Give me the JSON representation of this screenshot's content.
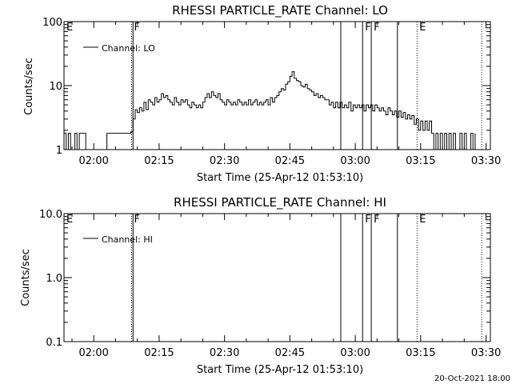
{
  "footer_timestamp": "20-Oct-2021 18:00",
  "chart_data": [
    {
      "type": "line",
      "title": "RHESSI PARTICLE_RATE Channel: LO",
      "xlabel": "Start Time (25-Apr-12 01:53:10)",
      "ylabel": "Counts/sec",
      "yscale": "log",
      "ylim": [
        1,
        100
      ],
      "xlim": [
        "01:53:10",
        "03:31:00"
      ],
      "x_ticks": [
        "02:00",
        "02:15",
        "02:30",
        "02:45",
        "03:00",
        "03:15",
        "03:30"
      ],
      "y_ticks": [
        "1",
        "10",
        "100"
      ],
      "legend": {
        "placement": "top-left",
        "entries": [
          "Channel: LO"
        ]
      },
      "grid": false,
      "series": [
        {
          "name": "Channel: LO",
          "points": [
            [
              "01:53:10",
              1.8
            ],
            [
              "01:53:40",
              1.0
            ],
            [
              "01:54:10",
              1.8
            ],
            [
              "01:54:40",
              1.0
            ],
            [
              "01:55:10",
              1.0
            ],
            [
              "01:55:40",
              1.8
            ],
            [
              "01:56:10",
              1.0
            ],
            [
              "01:56:40",
              1.8
            ],
            [
              "01:57:10",
              1.8
            ],
            [
              "01:57:40",
              1.8
            ],
            [
              "01:58:10",
              1.0
            ],
            [
              "01:58:40",
              1.0
            ],
            [
              "01:59:10",
              1.0
            ],
            [
              "02:00:10",
              1.0
            ],
            [
              "02:01:10",
              1.0
            ],
            [
              "02:02:10",
              1.0
            ],
            [
              "02:03:00",
              1.8
            ],
            [
              "02:04:30",
              1.8
            ],
            [
              "02:06:00",
              1.8
            ],
            [
              "02:07:30",
              1.8
            ],
            [
              "02:08:30",
              1.9
            ],
            [
              "02:09:00",
              3.0
            ],
            [
              "02:09:30",
              4.2
            ],
            [
              "02:10:00",
              3.8
            ],
            [
              "02:10:30",
              4.5
            ],
            [
              "02:11:00",
              4.0
            ],
            [
              "02:11:30",
              5.5
            ],
            [
              "02:12:00",
              4.2
            ],
            [
              "02:12:30",
              6.0
            ],
            [
              "02:13:00",
              5.5
            ],
            [
              "02:13:30",
              5.0
            ],
            [
              "02:14:00",
              6.5
            ],
            [
              "02:14:30",
              5.5
            ],
            [
              "02:15:00",
              6.0
            ],
            [
              "02:15:30",
              7.5
            ],
            [
              "02:16:00",
              6.5
            ],
            [
              "02:16:30",
              7.0
            ],
            [
              "02:17:00",
              6.0
            ],
            [
              "02:17:30",
              5.5
            ],
            [
              "02:18:00",
              5.0
            ],
            [
              "02:18:30",
              6.5
            ],
            [
              "02:19:00",
              5.5
            ],
            [
              "02:19:30",
              5.0
            ],
            [
              "02:20:00",
              6.0
            ],
            [
              "02:20:30",
              5.5
            ],
            [
              "02:21:00",
              6.0
            ],
            [
              "02:21:30",
              5.0
            ],
            [
              "02:22:00",
              4.5
            ],
            [
              "02:22:30",
              5.5
            ],
            [
              "02:23:00",
              5.0
            ],
            [
              "02:23:30",
              4.5
            ],
            [
              "02:24:00",
              5.0
            ],
            [
              "02:24:30",
              4.5
            ],
            [
              "02:25:00",
              5.5
            ],
            [
              "02:25:30",
              6.5
            ],
            [
              "02:26:00",
              7.5
            ],
            [
              "02:26:30",
              6.5
            ],
            [
              "02:27:00",
              8.0
            ],
            [
              "02:27:30",
              7.0
            ],
            [
              "02:28:00",
              6.5
            ],
            [
              "02:28:30",
              7.5
            ],
            [
              "02:29:00",
              6.0
            ],
            [
              "02:29:30",
              5.5
            ],
            [
              "02:30:00",
              5.0
            ],
            [
              "02:30:30",
              6.0
            ],
            [
              "02:31:00",
              5.5
            ],
            [
              "02:31:30",
              5.0
            ],
            [
              "02:32:00",
              5.5
            ],
            [
              "02:32:30",
              5.0
            ],
            [
              "02:33:00",
              6.0
            ],
            [
              "02:33:30",
              5.5
            ],
            [
              "02:34:00",
              5.0
            ],
            [
              "02:34:30",
              5.5
            ],
            [
              "02:35:00",
              5.0
            ],
            [
              "02:35:30",
              6.0
            ],
            [
              "02:36:00",
              5.0
            ],
            [
              "02:36:30",
              5.5
            ],
            [
              "02:37:00",
              6.0
            ],
            [
              "02:37:30",
              5.0
            ],
            [
              "02:38:00",
              5.5
            ],
            [
              "02:38:30",
              5.0
            ],
            [
              "02:39:00",
              5.5
            ],
            [
              "02:39:30",
              6.0
            ],
            [
              "02:40:00",
              5.0
            ],
            [
              "02:40:30",
              6.5
            ],
            [
              "02:41:00",
              5.5
            ],
            [
              "02:41:30",
              6.5
            ],
            [
              "02:42:00",
              7.0
            ],
            [
              "02:42:30",
              8.0
            ],
            [
              "02:43:00",
              9.0
            ],
            [
              "02:43:30",
              8.5
            ],
            [
              "02:44:00",
              10.5
            ],
            [
              "02:44:30",
              11.5
            ],
            [
              "02:45:00",
              14.0
            ],
            [
              "02:45:30",
              16.5
            ],
            [
              "02:46:00",
              13.0
            ],
            [
              "02:46:30",
              12.0
            ],
            [
              "02:47:00",
              11.5
            ],
            [
              "02:47:30",
              10.0
            ],
            [
              "02:48:00",
              9.5
            ],
            [
              "02:48:30",
              10.5
            ],
            [
              "02:49:00",
              9.0
            ],
            [
              "02:49:30",
              8.5
            ],
            [
              "02:50:00",
              8.0
            ],
            [
              "02:50:30",
              7.0
            ],
            [
              "02:51:00",
              7.5
            ],
            [
              "02:51:30",
              6.5
            ],
            [
              "02:52:00",
              7.0
            ],
            [
              "02:52:30",
              6.5
            ],
            [
              "02:53:00",
              6.0
            ],
            [
              "02:53:30",
              6.0
            ],
            [
              "02:54:00",
              5.0
            ],
            [
              "02:54:30",
              5.5
            ],
            [
              "02:55:00",
              4.5
            ],
            [
              "02:55:30",
              5.5
            ],
            [
              "02:56:00",
              4.5
            ],
            [
              "02:56:30",
              5.5
            ],
            [
              "02:57:00",
              4.5
            ],
            [
              "02:57:30",
              5.0
            ],
            [
              "02:58:00",
              4.5
            ],
            [
              "02:58:30",
              5.5
            ],
            [
              "02:59:00",
              4.0
            ],
            [
              "02:59:30",
              5.0
            ],
            [
              "03:00:00",
              4.5
            ],
            [
              "03:00:30",
              5.0
            ],
            [
              "03:01:00",
              4.5
            ],
            [
              "03:01:30",
              5.0
            ],
            [
              "03:02:00",
              4.0
            ],
            [
              "03:02:30",
              5.0
            ],
            [
              "03:03:00",
              4.5
            ],
            [
              "03:03:30",
              5.0
            ],
            [
              "03:04:00",
              4.0
            ],
            [
              "03:04:30",
              5.0
            ],
            [
              "03:05:00",
              4.5
            ],
            [
              "03:05:30",
              4.0
            ],
            [
              "03:06:00",
              4.5
            ],
            [
              "03:06:30",
              4.0
            ],
            [
              "03:07:00",
              3.5
            ],
            [
              "03:07:30",
              4.5
            ],
            [
              "03:08:00",
              4.0
            ],
            [
              "03:08:30",
              3.5
            ],
            [
              "03:09:00",
              4.0
            ],
            [
              "03:09:30",
              3.2
            ],
            [
              "03:10:00",
              4.0
            ],
            [
              "03:10:30",
              3.2
            ],
            [
              "03:11:00",
              3.8
            ],
            [
              "03:11:30",
              3.0
            ],
            [
              "03:12:00",
              3.5
            ],
            [
              "03:12:30",
              3.0
            ],
            [
              "03:13:00",
              3.4
            ],
            [
              "03:13:30",
              2.5
            ],
            [
              "03:14:00",
              3.0
            ],
            [
              "03:14:30",
              2.0
            ],
            [
              "03:15:00",
              2.8
            ],
            [
              "03:15:30",
              2.0
            ],
            [
              "03:16:00",
              2.8
            ],
            [
              "03:16:30",
              2.0
            ],
            [
              "03:17:00",
              2.8
            ],
            [
              "03:17:30",
              1.8
            ],
            [
              "03:18:00",
              1.0
            ],
            [
              "03:18:30",
              1.8
            ],
            [
              "03:19:00",
              1.0
            ],
            [
              "03:19:30",
              1.8
            ],
            [
              "03:20:00",
              1.0
            ],
            [
              "03:20:30",
              1.8
            ],
            [
              "03:21:00",
              1.0
            ],
            [
              "03:21:30",
              1.8
            ],
            [
              "03:22:00",
              1.0
            ],
            [
              "03:22:30",
              1.8
            ],
            [
              "03:23:00",
              1.0
            ],
            [
              "03:23:30",
              1.0
            ],
            [
              "03:24:00",
              1.8
            ],
            [
              "03:24:30",
              1.0
            ],
            [
              "03:25:00",
              1.8
            ],
            [
              "03:25:30",
              1.0
            ],
            [
              "03:26:00",
              1.0
            ],
            [
              "03:26:30",
              1.8
            ],
            [
              "03:27:00",
              1.0
            ],
            [
              "03:27:30",
              1.8
            ]
          ]
        }
      ],
      "markers": [
        {
          "time": "01:53:10",
          "label": "E",
          "style": "solid"
        },
        {
          "time": "02:08:40",
          "label": "F",
          "style": "dotted"
        },
        {
          "time": "02:09:00",
          "label": "",
          "style": "solid"
        },
        {
          "time": "02:56:40",
          "label": "",
          "style": "solid"
        },
        {
          "time": "03:01:40",
          "label": "F",
          "style": "solid"
        },
        {
          "time": "03:03:40",
          "label": "F",
          "style": "solid"
        },
        {
          "time": "03:09:40",
          "label": "",
          "style": "solid"
        },
        {
          "time": "03:14:10",
          "label": "E",
          "style": "dotted"
        },
        {
          "time": "03:29:00",
          "label": "",
          "style": "dotted"
        }
      ]
    },
    {
      "type": "line",
      "title": "RHESSI PARTICLE_RATE Channel: HI",
      "xlabel": "Start Time (25-Apr-12 01:53:10)",
      "ylabel": "Counts/sec",
      "yscale": "log",
      "ylim": [
        0.1,
        10
      ],
      "xlim": [
        "01:53:10",
        "03:31:00"
      ],
      "x_ticks": [
        "02:00",
        "02:15",
        "02:30",
        "02:45",
        "03:00",
        "03:15",
        "03:30"
      ],
      "y_ticks": [
        "0.1",
        "1.0",
        "10.0"
      ],
      "legend": {
        "placement": "top-left",
        "entries": [
          "Channel: HI"
        ]
      },
      "grid": false,
      "series": [
        {
          "name": "Channel: HI",
          "points": []
        }
      ],
      "markers": [
        {
          "time": "01:53:10",
          "label": "E",
          "style": "solid"
        },
        {
          "time": "02:08:40",
          "label": "F",
          "style": "dotted"
        },
        {
          "time": "02:09:00",
          "label": "",
          "style": "solid"
        },
        {
          "time": "02:56:40",
          "label": "",
          "style": "solid"
        },
        {
          "time": "03:01:40",
          "label": "F",
          "style": "solid"
        },
        {
          "time": "03:03:40",
          "label": "F",
          "style": "solid"
        },
        {
          "time": "03:09:40",
          "label": "",
          "style": "solid"
        },
        {
          "time": "03:14:10",
          "label": "E",
          "style": "dotted"
        },
        {
          "time": "03:29:00",
          "label": "",
          "style": "dotted"
        }
      ]
    }
  ]
}
